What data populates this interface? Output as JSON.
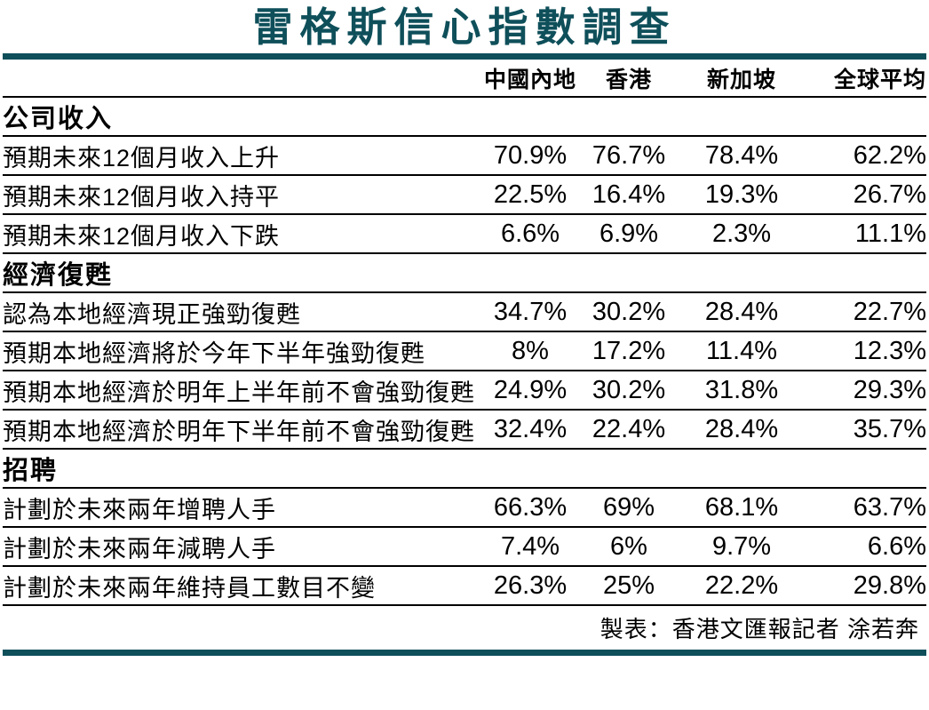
{
  "title": "雷格斯信心指數調查",
  "columns": [
    "中國內地",
    "香港",
    "新加坡",
    "全球平均"
  ],
  "sections": [
    {
      "header": "公司收入",
      "rows": [
        {
          "label": "預期未來12個月收入上升",
          "values": [
            "70.9%",
            "76.7%",
            "78.4%",
            "62.2%"
          ]
        },
        {
          "label": "預期未來12個月收入持平",
          "values": [
            "22.5%",
            "16.4%",
            "19.3%",
            "26.7%"
          ]
        },
        {
          "label": "預期未來12個月收入下跌",
          "values": [
            "6.6%",
            "6.9%",
            "2.3%",
            "11.1%"
          ]
        }
      ]
    },
    {
      "header": "經濟復甦",
      "rows": [
        {
          "label": "認為本地經濟現正強勁復甦",
          "values": [
            "34.7%",
            "30.2%",
            "28.4%",
            "22.7%"
          ]
        },
        {
          "label": "預期本地經濟將於今年下半年強勁復甦",
          "values": [
            "8%",
            "17.2%",
            "11.4%",
            "12.3%"
          ]
        },
        {
          "label": "預期本地經濟於明年上半年前不會強勁復甦",
          "values": [
            "24.9%",
            "30.2%",
            "31.8%",
            "29.3%"
          ]
        },
        {
          "label": "預期本地經濟於明年下半年前不會強勁復甦",
          "values": [
            "32.4%",
            "22.4%",
            "28.4%",
            "35.7%"
          ]
        }
      ]
    },
    {
      "header": "招聘",
      "rows": [
        {
          "label": "計劃於未來兩年增聘人手",
          "values": [
            "66.3%",
            "69%",
            "68.1%",
            "63.7%"
          ]
        },
        {
          "label": "計劃於未來兩年減聘人手",
          "values": [
            "7.4%",
            "6%",
            "9.7%",
            "6.6%"
          ]
        },
        {
          "label": "計劃於未來兩年維持員工數目不變",
          "values": [
            "26.3%",
            "25%",
            "22.2%",
            "29.8%"
          ]
        }
      ]
    }
  ],
  "footer": "製表：香港文匯報記者 涂若奔",
  "colors": {
    "accent": "#0e4f5a",
    "text": "#000000",
    "background": "#ffffff"
  },
  "chart_data": {
    "type": "table",
    "title": "雷格斯信心指數調查",
    "columns": [
      "中國內地",
      "香港",
      "新加坡",
      "全球平均"
    ],
    "groups": [
      {
        "name": "公司收入",
        "rows": [
          {
            "label": "預期未來12個月收入上升",
            "values_percent": [
              70.9,
              76.7,
              78.4,
              62.2
            ]
          },
          {
            "label": "預期未來12個月收入持平",
            "values_percent": [
              22.5,
              16.4,
              19.3,
              26.7
            ]
          },
          {
            "label": "預期未來12個月收入下跌",
            "values_percent": [
              6.6,
              6.9,
              2.3,
              11.1
            ]
          }
        ]
      },
      {
        "name": "經濟復甦",
        "rows": [
          {
            "label": "認為本地經濟現正強勁復甦",
            "values_percent": [
              34.7,
              30.2,
              28.4,
              22.7
            ]
          },
          {
            "label": "預期本地經濟將於今年下半年強勁復甦",
            "values_percent": [
              8,
              17.2,
              11.4,
              12.3
            ]
          },
          {
            "label": "預期本地經濟於明年上半年前不會強勁復甦",
            "values_percent": [
              24.9,
              30.2,
              31.8,
              29.3
            ]
          },
          {
            "label": "預期本地經濟於明年下半年前不會強勁復甦",
            "values_percent": [
              32.4,
              22.4,
              28.4,
              35.7
            ]
          }
        ]
      },
      {
        "name": "招聘",
        "rows": [
          {
            "label": "計劃於未來兩年增聘人手",
            "values_percent": [
              66.3,
              69,
              68.1,
              63.7
            ]
          },
          {
            "label": "計劃於未來兩年減聘人手",
            "values_percent": [
              7.4,
              6,
              9.7,
              6.6
            ]
          },
          {
            "label": "計劃於未來兩年維持員工數目不變",
            "values_percent": [
              26.3,
              25,
              22.2,
              29.8
            ]
          }
        ]
      }
    ],
    "credit": "製表：香港文匯報記者 涂若奔"
  }
}
